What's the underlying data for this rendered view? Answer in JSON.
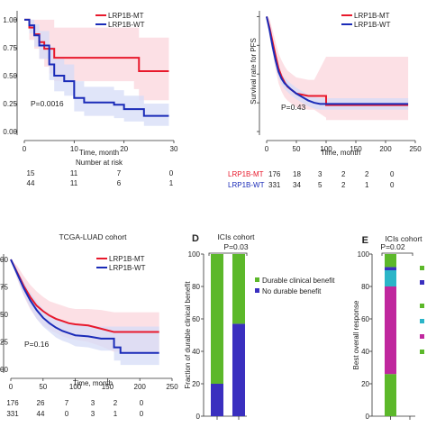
{
  "colors": {
    "mt": "#e8192c",
    "wt": "#1a2bb8",
    "mt_band": "#fbd5dc",
    "wt_band": "#d6dcf7",
    "durable": "#5cb82a",
    "no_durable": "#3a2fbf",
    "magenta": "#c0279e",
    "cyan": "#2bb5c8"
  },
  "chart_data": [
    {
      "panel": "top-left",
      "type": "line",
      "xlabel": "Time, month",
      "xticks": [
        0,
        10,
        20,
        30
      ],
      "xlim": [
        0,
        30
      ],
      "yticks": [
        "0.00",
        "0.25",
        "0.50",
        "0.75",
        "1.00"
      ],
      "ylim": [
        0,
        1.08
      ],
      "legend": "top-right",
      "pvalue": "P=0.0016",
      "series": [
        {
          "name": "LRP1B-MT",
          "color": "#e8192c",
          "x": [
            0,
            1,
            1,
            2,
            2,
            3,
            3,
            4,
            4,
            5,
            5,
            6,
            6,
            22,
            22,
            23,
            23,
            29
          ],
          "y": [
            1,
            1,
            0.93,
            0.93,
            0.87,
            0.87,
            0.8,
            0.8,
            0.74,
            0.74,
            0.74,
            0.74,
            0.66,
            0.66,
            0.66,
            0.66,
            0.54,
            0.54
          ],
          "upper": [
            1,
            1,
            1,
            1,
            1,
            1,
            1,
            1,
            1,
            1,
            1,
            1,
            0.93,
            0.93,
            0.93,
            0.93,
            0.84,
            0.84
          ],
          "lower": [
            1,
            1,
            0.82,
            0.82,
            0.74,
            0.74,
            0.65,
            0.65,
            0.58,
            0.58,
            0.52,
            0.52,
            0.45,
            0.45,
            0.38,
            0.38,
            0.28,
            0.28
          ]
        },
        {
          "name": "LRP1B-WT",
          "color": "#1a2bb8",
          "x": [
            0,
            1,
            1,
            2,
            2,
            3,
            3,
            5,
            5,
            6,
            6,
            8,
            8,
            10,
            10,
            12,
            12,
            18,
            18,
            20,
            20,
            24,
            24,
            29
          ],
          "y": [
            1,
            1,
            0.95,
            0.95,
            0.86,
            0.86,
            0.77,
            0.77,
            0.6,
            0.6,
            0.5,
            0.5,
            0.45,
            0.45,
            0.3,
            0.3,
            0.26,
            0.26,
            0.24,
            0.24,
            0.2,
            0.2,
            0.14,
            0.14
          ],
          "upper": [
            1,
            1,
            1,
            1,
            0.96,
            0.96,
            0.9,
            0.9,
            0.76,
            0.76,
            0.65,
            0.65,
            0.6,
            0.6,
            0.45,
            0.45,
            0.4,
            0.4,
            0.37,
            0.37,
            0.32,
            0.32,
            0.25,
            0.25
          ],
          "lower": [
            1,
            1,
            0.88,
            0.88,
            0.76,
            0.76,
            0.65,
            0.65,
            0.46,
            0.46,
            0.36,
            0.36,
            0.32,
            0.32,
            0.18,
            0.18,
            0.14,
            0.14,
            0.12,
            0.12,
            0.09,
            0.09,
            0.05,
            0.05
          ]
        }
      ],
      "risk_title": "Number at risk",
      "risk_rows": [
        {
          "values": [
            "15",
            "11",
            "7",
            "0"
          ]
        },
        {
          "values": [
            "44",
            "11",
            "6",
            "1"
          ]
        }
      ]
    },
    {
      "panel": "top-right",
      "type": "line",
      "ylabel": "Survival rate for PFS",
      "xlabel": "Time, month",
      "xticks": [
        0,
        50,
        100,
        150,
        200,
        250
      ],
      "xlim": [
        0,
        250
      ],
      "ylim": [
        0,
        1.05
      ],
      "legend": "top-right",
      "pvalue": "P=0.43",
      "series": [
        {
          "name": "LRP1B-MT",
          "color": "#e8192c",
          "x": [
            0,
            5,
            10,
            15,
            20,
            25,
            30,
            35,
            40,
            45,
            50,
            60,
            70,
            80,
            100,
            100,
            238
          ],
          "y": [
            1,
            0.9,
            0.78,
            0.66,
            0.55,
            0.48,
            0.43,
            0.39,
            0.37,
            0.35,
            0.33,
            0.32,
            0.31,
            0.31,
            0.31,
            0.23,
            0.23
          ],
          "upper": [
            1,
            0.98,
            0.88,
            0.78,
            0.68,
            0.62,
            0.57,
            0.53,
            0.51,
            0.49,
            0.47,
            0.46,
            0.45,
            0.45,
            0.65,
            0.65,
            0.65
          ],
          "lower": [
            1,
            0.82,
            0.68,
            0.54,
            0.42,
            0.35,
            0.3,
            0.27,
            0.25,
            0.23,
            0.21,
            0.2,
            0.19,
            0.19,
            0.12,
            0.1,
            0.1
          ]
        },
        {
          "name": "LRP1B-WT",
          "color": "#1a2bb8",
          "x": [
            0,
            5,
            10,
            15,
            20,
            25,
            30,
            40,
            50,
            60,
            70,
            80,
            90,
            100,
            238
          ],
          "y": [
            1,
            0.88,
            0.74,
            0.62,
            0.52,
            0.46,
            0.42,
            0.37,
            0.33,
            0.3,
            0.27,
            0.25,
            0.24,
            0.24,
            0.24
          ],
          "upper": [
            1,
            0.92,
            0.79,
            0.67,
            0.57,
            0.51,
            0.47,
            0.42,
            0.38,
            0.35,
            0.32,
            0.3,
            0.29,
            0.29,
            0.29
          ],
          "lower": [
            1,
            0.84,
            0.69,
            0.57,
            0.47,
            0.41,
            0.37,
            0.32,
            0.28,
            0.25,
            0.22,
            0.2,
            0.19,
            0.19,
            0.19
          ]
        }
      ],
      "risk_rows": [
        {
          "label": "LRP1B-MT",
          "values": [
            "176",
            "18",
            "3",
            "2",
            "2",
            "0"
          ]
        },
        {
          "label": "LRP1B-WT",
          "values": [
            "331",
            "34",
            "5",
            "2",
            "1",
            "0"
          ]
        }
      ]
    },
    {
      "panel": "bottom-left",
      "type": "line",
      "title": "TCGA-LUAD cohort",
      "xlabel": "Time, month",
      "xticks": [
        0,
        50,
        100,
        150,
        200,
        250
      ],
      "xlim": [
        0,
        250
      ],
      "ylim": [
        0,
        1.05
      ],
      "legend": "top-right",
      "pvalue": "P=0.16",
      "series": [
        {
          "name": "LRP1B-MT",
          "color": "#e8192c",
          "x": [
            0,
            10,
            20,
            30,
            40,
            50,
            60,
            70,
            80,
            90,
            100,
            120,
            140,
            160,
            180,
            200,
            230
          ],
          "y": [
            1,
            0.88,
            0.76,
            0.66,
            0.58,
            0.53,
            0.49,
            0.46,
            0.44,
            0.42,
            0.41,
            0.4,
            0.37,
            0.34,
            0.34,
            0.34,
            0.34
          ],
          "upper": [
            1,
            0.94,
            0.85,
            0.77,
            0.71,
            0.66,
            0.62,
            0.6,
            0.58,
            0.56,
            0.55,
            0.55,
            0.54,
            0.52,
            0.52,
            0.52,
            0.52
          ],
          "lower": [
            1,
            0.82,
            0.67,
            0.55,
            0.46,
            0.4,
            0.36,
            0.33,
            0.3,
            0.28,
            0.27,
            0.25,
            0.21,
            0.16,
            0.16,
            0.16,
            0.16
          ]
        },
        {
          "name": "LRP1B-WT",
          "color": "#1a2bb8",
          "x": [
            0,
            10,
            20,
            30,
            40,
            50,
            60,
            70,
            80,
            90,
            100,
            120,
            140,
            160,
            160,
            170,
            170,
            230
          ],
          "y": [
            1,
            0.87,
            0.74,
            0.63,
            0.54,
            0.47,
            0.42,
            0.38,
            0.35,
            0.33,
            0.31,
            0.3,
            0.28,
            0.28,
            0.2,
            0.2,
            0.15,
            0.15
          ],
          "upper": [
            1,
            0.91,
            0.8,
            0.7,
            0.62,
            0.55,
            0.5,
            0.47,
            0.44,
            0.42,
            0.41,
            0.4,
            0.39,
            0.39,
            0.39,
            0.39,
            0.39,
            0.39
          ],
          "lower": [
            1,
            0.83,
            0.68,
            0.56,
            0.46,
            0.39,
            0.34,
            0.29,
            0.26,
            0.24,
            0.21,
            0.2,
            0.17,
            0.17,
            0.08,
            0.08,
            0.04,
            0.04
          ]
        }
      ],
      "risk_rows": [
        {
          "values": [
            "176",
            "26",
            "7",
            "3",
            "2",
            "0"
          ]
        },
        {
          "values": [
            "331",
            "44",
            "0",
            "3",
            "1",
            "0"
          ]
        }
      ]
    },
    {
      "panel": "D",
      "type": "bar",
      "stacked": true,
      "panel_letter": "D",
      "title": "ICIs cohort",
      "pvalue": "P=0.03",
      "ylabel": "Fraction of durable clinical benefit",
      "yticks": [
        0,
        20,
        40,
        60,
        80,
        100
      ],
      "ylim": [
        0,
        100
      ],
      "legend": "top-right",
      "series": [
        {
          "name": "No durable benefit",
          "color": "#3a2fbf",
          "values": [
            20,
            57
          ]
        },
        {
          "name": "Durable clinical benefit",
          "color": "#5cb82a",
          "values": [
            80,
            43
          ]
        }
      ]
    },
    {
      "panel": "E",
      "type": "bar",
      "stacked": true,
      "panel_letter": "E",
      "title": "ICIs cohort",
      "pvalue": "P=0.02",
      "ylabel": "Best overall response",
      "yticks": [
        0,
        20,
        40,
        60,
        80,
        100
      ],
      "ylim": [
        0,
        100
      ],
      "series": [
        {
          "color": "#5cb82a",
          "values": [
            26,
            0
          ]
        },
        {
          "color": "#c0279e",
          "values": [
            54,
            0
          ]
        },
        {
          "color": "#2bb5c8",
          "values": [
            10,
            0
          ]
        },
        {
          "color": "#3a2fbf",
          "values": [
            2,
            0
          ]
        },
        {
          "color": "#5cb82a",
          "values": [
            8,
            0
          ]
        }
      ]
    }
  ]
}
